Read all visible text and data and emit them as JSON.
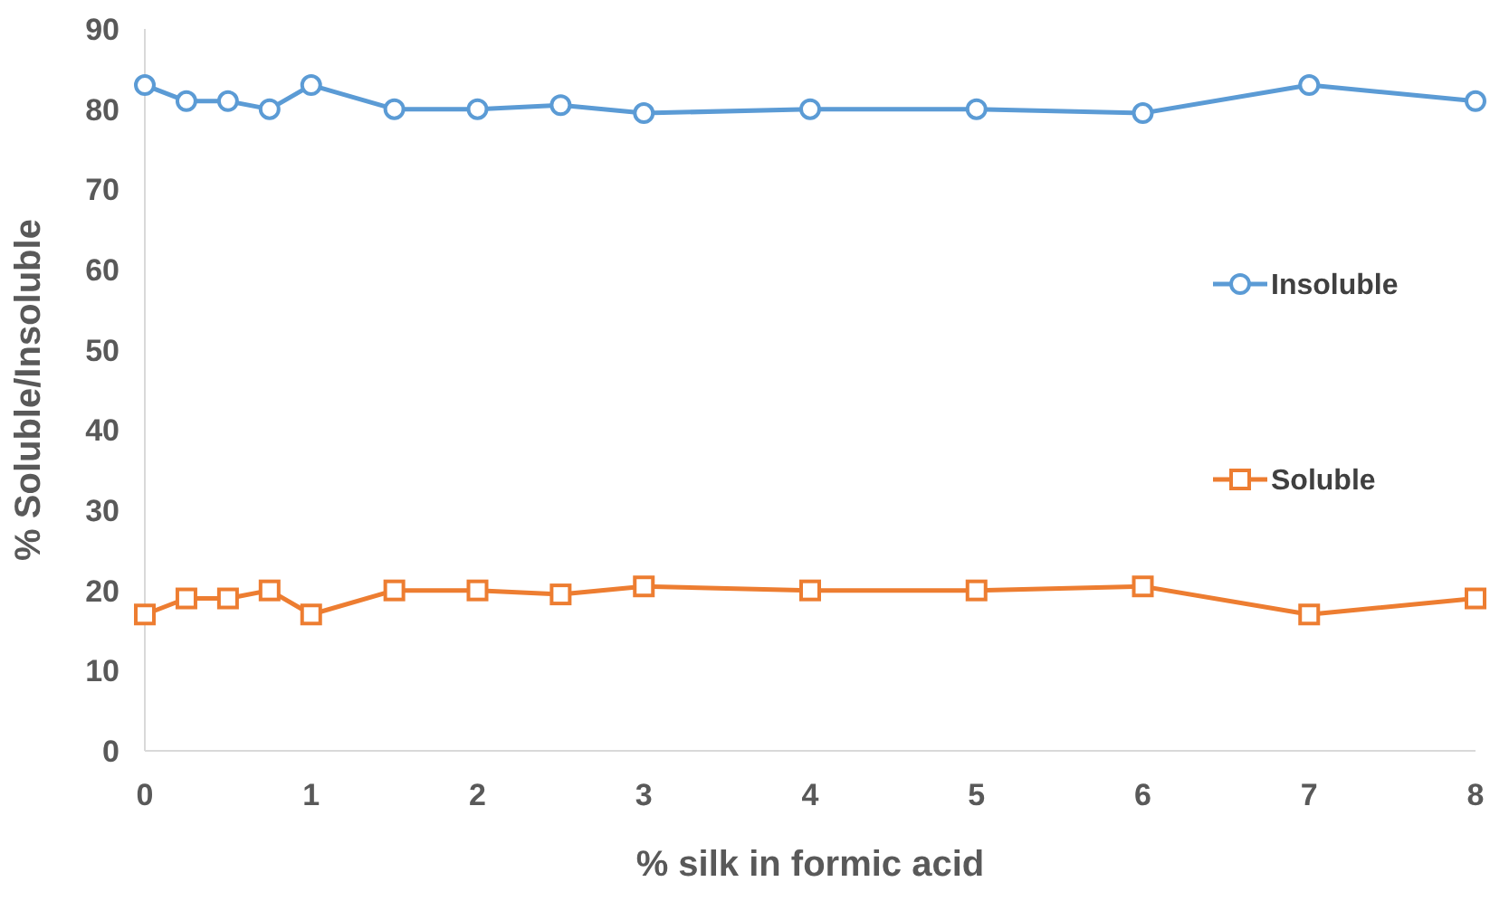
{
  "chart_data": {
    "type": "line",
    "xlabel": "% silk in formic acid",
    "ylabel": "% Soluble/Insoluble",
    "x": [
      0,
      0.25,
      0.5,
      0.75,
      1,
      1.5,
      2,
      2.5,
      3,
      4,
      5,
      6,
      7,
      8
    ],
    "xlim": [
      0,
      8
    ],
    "xticks": [
      0,
      1,
      2,
      3,
      4,
      5,
      6,
      7,
      8
    ],
    "ylim": [
      0,
      90
    ],
    "yticks": [
      0,
      10,
      20,
      30,
      40,
      50,
      60,
      70,
      80,
      90
    ],
    "legend": "right",
    "series": [
      {
        "name": "Insoluble",
        "color": "#5b9bd5",
        "marker": "circle",
        "values": [
          83,
          81,
          81,
          80,
          83,
          80,
          80,
          80.5,
          79.5,
          80,
          80,
          79.5,
          83,
          81
        ]
      },
      {
        "name": "Soluble",
        "color": "#ed7d31",
        "marker": "square",
        "values": [
          17,
          19,
          19,
          20,
          17,
          20,
          20,
          19.5,
          20.5,
          20,
          20,
          20.5,
          17,
          19
        ]
      }
    ]
  }
}
